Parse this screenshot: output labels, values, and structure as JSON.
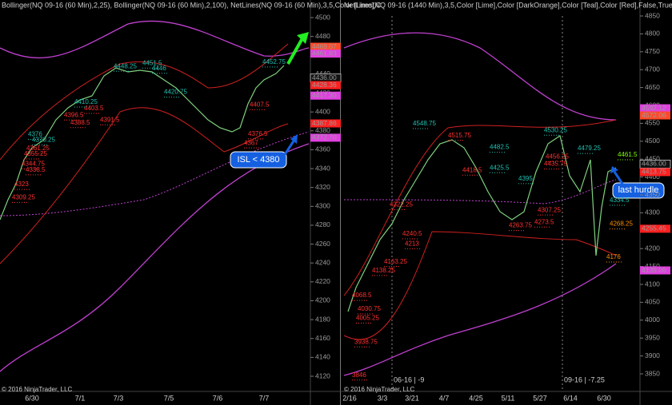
{
  "left_panel": {
    "header": "Bollinger(NQ 09-16 (60 Min),2,25), Bollinger(NQ 09-16 (60 Min),2,100), NetLines(NQ 09-16 (60 Min),3,5,Color [Lime],C",
    "yticks": [
      4500,
      4480,
      4460,
      4440,
      4420,
      4400,
      4380,
      4360,
      4340,
      4320,
      4300,
      4280,
      4260,
      4240,
      4220,
      4200,
      4180,
      4160,
      4140,
      4120
    ],
    "xlabels": [
      "6/30",
      "7/1",
      "7/3",
      "7/5",
      "7/6",
      "7/7"
    ],
    "price_tags": [
      {
        "value": 4469.07,
        "label": "4469.07",
        "color": "#ff4a2a"
      },
      {
        "value": 4461.83,
        "label": "4461.83",
        "color": "#e040e0"
      },
      {
        "value": 4436,
        "label": "4436.00",
        "color": "#111111"
      },
      {
        "value": 4428.36,
        "label": "4428.36",
        "color": "#ff2020"
      },
      {
        "value": 4417.3,
        "label": "4417.30",
        "color": "#e040e0"
      },
      {
        "value": 4387.86,
        "label": "4387.86",
        "color": "#ff2020"
      },
      {
        "value": 4372.7,
        "label": "4372.70",
        "color": "#e040e0"
      }
    ],
    "levels": [
      {
        "value": 4451.5,
        "color": "#20c0b0"
      },
      {
        "value": 4448.25,
        "color": "#20c0b0"
      },
      {
        "value": 4446,
        "color": "#20c0b0"
      },
      {
        "value": 4420.75,
        "color": "#20c0b0"
      },
      {
        "value": 4410.25,
        "color": "#20c0b0"
      },
      {
        "value": 4407.5,
        "color": "#ff3030"
      },
      {
        "value": 4403.5,
        "color": "#ff3030"
      },
      {
        "value": 4396.5,
        "color": "#ff3030"
      },
      {
        "value": 4391.5,
        "color": "#ff3030"
      },
      {
        "value": 4388.5,
        "color": "#ff3030"
      },
      {
        "value": 4376,
        "color": "#20c0b0"
      },
      {
        "value": 4370.25,
        "color": "#20c0b0"
      },
      {
        "value": 4361.25,
        "color": "#ff3030"
      },
      {
        "value": 4355.25,
        "color": "#ff3030"
      },
      {
        "value": 4344.75,
        "color": "#ff3030"
      },
      {
        "value": 4338.5,
        "color": "#ff3030"
      },
      {
        "value": 4323,
        "color": "#ff3030"
      },
      {
        "value": 4309.25,
        "color": "#ff3030"
      },
      {
        "value": 4376.5,
        "color": "#ff3030"
      },
      {
        "value": 4367,
        "color": "#ff3030"
      },
      {
        "value": 4452.75,
        "color": "#20c0b0"
      }
    ],
    "annotation": "ISL < 4380"
  },
  "right_panel": {
    "header": "NetLines(NQ 09-16 (1440 Min),3,5,Color [Lime],Color [DarkOrange],Color [Teal],Color [Red],False,True,True), Boll",
    "yticks": [
      4850,
      4800,
      4750,
      4700,
      4650,
      4600,
      4550,
      4500,
      4450,
      4400,
      4350,
      4300,
      4250,
      4200,
      4150,
      4100,
      4050,
      4000,
      3950,
      3900,
      3850
    ],
    "xlabels": [
      "2/16",
      "3/3",
      "3/21",
      "4/7",
      "4/25",
      "5/11",
      "5/27",
      "6/14",
      "6/30"
    ],
    "price_tags": [
      {
        "value": 4592.12,
        "label": "4592.12",
        "color": "#e040e0"
      },
      {
        "value": 4572.06,
        "label": "4572.06",
        "color": "#ff4a2a"
      },
      {
        "value": 4436,
        "label": "4436.00",
        "color": "#111111"
      },
      {
        "value": 4413.75,
        "label": "4413.75",
        "color": "#ff2020"
      },
      {
        "value": 4255.45,
        "label": "4255.45",
        "color": "#ff2020"
      },
      {
        "value": 4139.06,
        "label": "4139.06",
        "color": "#e040e0"
      }
    ],
    "levels": [
      {
        "value": 4548.75,
        "color": "#20c0b0"
      },
      {
        "value": 4515.75,
        "color": "#ff3030"
      },
      {
        "value": 4530.25,
        "color": "#20c0b0"
      },
      {
        "value": 4482.5,
        "color": "#20c0b0"
      },
      {
        "value": 4479.25,
        "color": "#20c0b0"
      },
      {
        "value": 4461.5,
        "color": "#7fff00"
      },
      {
        "value": 4456.25,
        "color": "#ff3030"
      },
      {
        "value": 4435.75,
        "color": "#ff3030"
      },
      {
        "value": 4425.5,
        "color": "#20c0b0"
      },
      {
        "value": 4418.5,
        "color": "#ff3030"
      },
      {
        "value": 4395,
        "color": "#20c0b0"
      },
      {
        "value": 4334.5,
        "color": "#20c0b0"
      },
      {
        "value": 4322.25,
        "color": "#ff3030"
      },
      {
        "value": 4307.25,
        "color": "#ff3030"
      },
      {
        "value": 4273.5,
        "color": "#ff3030"
      },
      {
        "value": 4268.25,
        "color": "#ff8c00"
      },
      {
        "value": 4263.75,
        "color": "#ff3030"
      },
      {
        "value": 4240.5,
        "color": "#ff3030"
      },
      {
        "value": 4213,
        "color": "#ff3030"
      },
      {
        "value": 4163.25,
        "color": "#ff3030"
      },
      {
        "value": 4138.25,
        "color": "#ff3030"
      },
      {
        "value": 4068.5,
        "color": "#ff3030"
      },
      {
        "value": 4030.75,
        "color": "#ff3030"
      },
      {
        "value": 4005.25,
        "color": "#ff3030"
      },
      {
        "value": 3938.75,
        "color": "#ff3030"
      },
      {
        "value": 3846,
        "color": "#ff3030"
      },
      {
        "value": 4176,
        "color": "#ff8c00"
      }
    ],
    "annotation": "last hurdle",
    "rollovers": [
      "06-16 | -9",
      "09-16 | -7.25"
    ]
  },
  "copyright": "© 2016 NinjaTrader, LLC"
}
